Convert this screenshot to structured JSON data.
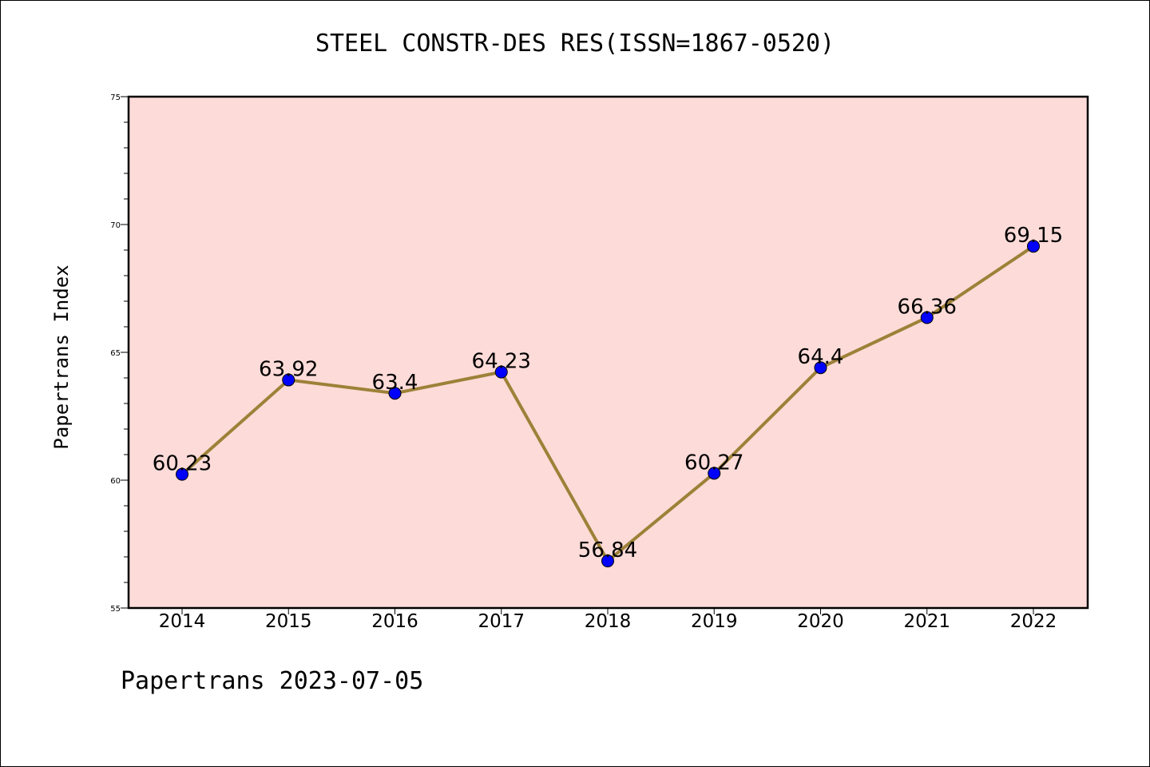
{
  "chart_data": {
    "type": "line",
    "title": "STEEL CONSTR-DES RES(ISSN=1867-0520)",
    "ylabel": "Papertrans Index",
    "xlabel": "",
    "categories": [
      "2014",
      "2015",
      "2016",
      "2017",
      "2018",
      "2019",
      "2020",
      "2021",
      "2022"
    ],
    "values": [
      60.23,
      63.92,
      63.4,
      64.23,
      56.84,
      60.27,
      64.4,
      66.36,
      69.15
    ],
    "data_labels": [
      "60.23",
      "63.92",
      "63.4",
      "64.23",
      "56.84",
      "60.27",
      "64.4",
      "66.36",
      "69.15"
    ],
    "ylim": [
      55,
      75
    ],
    "yticks": [
      55,
      60,
      65,
      70,
      75
    ],
    "grid": false,
    "colors": {
      "plot_background": "#fddbd8",
      "line": "#9c8138",
      "marker": "#0000ff"
    }
  },
  "footer": "Papertrans 2023-07-05"
}
